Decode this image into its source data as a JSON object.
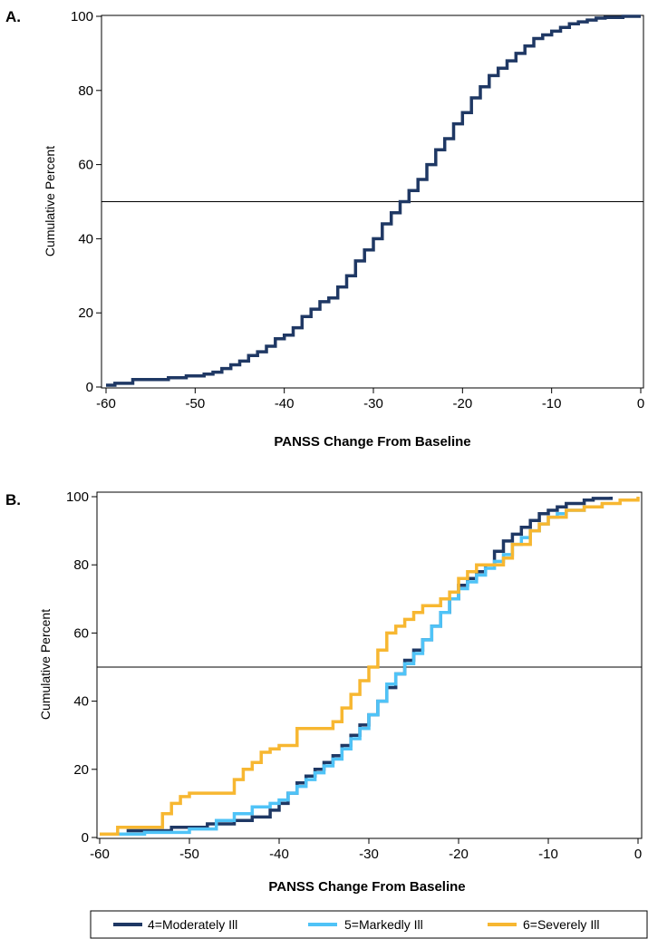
{
  "chart_data": [
    {
      "panel": "A.",
      "type": "line",
      "xlabel": "PANSS Change From Baseline",
      "ylabel": "Cumulative Percent",
      "xlim": [
        -60,
        0
      ],
      "ylim": [
        0,
        100
      ],
      "xticks": [
        -60,
        -50,
        -40,
        -30,
        -20,
        -10,
        0
      ],
      "yticks": [
        0,
        20,
        40,
        60,
        80,
        100
      ],
      "hline": 50,
      "series": [
        {
          "color": "#1f3864",
          "x": [
            -60,
            -59,
            -57,
            -53,
            -51,
            -49,
            -48,
            -47,
            -46,
            -45,
            -44,
            -43,
            -42,
            -41,
            -40,
            -39,
            -38,
            -37,
            -36,
            -35,
            -34,
            -33,
            -32,
            -31,
            -30,
            -29,
            -28,
            -27,
            -26,
            -25,
            -24,
            -23,
            -22,
            -21,
            -20,
            -19,
            -18,
            -17,
            -16,
            -15,
            -14,
            -13,
            -12,
            -11,
            -10,
            -9,
            -8,
            -7,
            -6,
            -5,
            -4,
            -2,
            0
          ],
          "y": [
            0.5,
            1,
            2,
            2.5,
            3,
            3.5,
            4,
            5,
            6,
            7,
            8.5,
            9.5,
            11,
            13,
            14,
            16,
            19,
            21,
            23,
            24,
            27,
            30,
            34,
            37,
            40,
            44,
            47,
            50,
            53,
            56,
            60,
            64,
            67,
            71,
            74,
            78,
            81,
            84,
            86,
            88,
            90,
            92,
            94,
            95,
            96,
            97,
            98,
            98.5,
            99,
            99.5,
            99.7,
            100,
            100
          ]
        }
      ]
    },
    {
      "panel": "B.",
      "type": "line",
      "xlabel": "PANSS Change From Baseline",
      "ylabel": "Cumulative Percent",
      "xlim": [
        -60,
        0
      ],
      "ylim": [
        0,
        100
      ],
      "xticks": [
        -60,
        -50,
        -40,
        -30,
        -20,
        -10,
        0
      ],
      "yticks": [
        0,
        20,
        40,
        60,
        80,
        100
      ],
      "hline": 50,
      "series": [
        {
          "name": "4=Moderately Ill",
          "color": "#1f3864",
          "x": [
            -57,
            -52,
            -48,
            -45,
            -43,
            -41,
            -40,
            -39,
            -38,
            -37,
            -36,
            -35,
            -34,
            -33,
            -32,
            -31,
            -30,
            -29,
            -28,
            -27,
            -26,
            -25,
            -24,
            -23,
            -22,
            -21,
            -20,
            -19,
            -18,
            -17,
            -16,
            -15,
            -14,
            -13,
            -12,
            -11,
            -10,
            -9,
            -8,
            -6,
            -5,
            -3
          ],
          "y": [
            2,
            3,
            4,
            5,
            6,
            8,
            10,
            13,
            16,
            18,
            20,
            22,
            24,
            27,
            30,
            33,
            36,
            40,
            44,
            48,
            52,
            55,
            58,
            62,
            66,
            70,
            74,
            76,
            78,
            80,
            84,
            87,
            89,
            91,
            93,
            95,
            96,
            97,
            98,
            99,
            99.5,
            100
          ]
        },
        {
          "name": "5=Markedly Ill",
          "color": "#4fc3f7",
          "x": [
            -59,
            -55,
            -50,
            -47,
            -45,
            -43,
            -41,
            -40,
            -39,
            -38,
            -37,
            -36,
            -35,
            -34,
            -33,
            -32,
            -31,
            -30,
            -29,
            -28,
            -27,
            -26,
            -25,
            -24,
            -23,
            -22,
            -21,
            -20,
            -19,
            -18,
            -17,
            -16,
            -15,
            -14,
            -13,
            -12,
            -11,
            -10,
            -9,
            -8,
            -6,
            -4
          ],
          "y": [
            1,
            1.5,
            2.5,
            5,
            7,
            9,
            10,
            11,
            13,
            15,
            17,
            19,
            21,
            23,
            26,
            29,
            32,
            36,
            40,
            45,
            48,
            51,
            54,
            58,
            62,
            66,
            70,
            73,
            75,
            77,
            79,
            81,
            83,
            86,
            88,
            90,
            92,
            94,
            95,
            96,
            97,
            98
          ]
        },
        {
          "name": "6=Severely Ill",
          "color": "#f7b731",
          "x": [
            -60,
            -58,
            -53,
            -52,
            -51,
            -50,
            -45,
            -44,
            -43,
            -42,
            -41,
            -40,
            -38,
            -37,
            -34,
            -33,
            -32,
            -31,
            -30,
            -29,
            -28,
            -27,
            -26,
            -25,
            -24,
            -22,
            -21,
            -20,
            -19,
            -18,
            -16,
            -15,
            -14,
            -12,
            -11,
            -10,
            -8,
            -6,
            -4,
            -2,
            0
          ],
          "y": [
            1,
            3,
            7,
            10,
            12,
            13,
            17,
            20,
            22,
            25,
            26,
            27,
            32,
            32,
            34,
            38,
            42,
            46,
            50,
            55,
            60,
            62,
            64,
            66,
            68,
            70,
            72,
            76,
            78,
            80,
            80,
            82,
            86,
            90,
            92,
            94,
            96,
            97,
            98,
            99,
            100
          ]
        }
      ]
    }
  ],
  "legend": {
    "items": [
      {
        "label": "4=Moderately Ill",
        "color": "#1f3864"
      },
      {
        "label": "5=Markedly Ill",
        "color": "#4fc3f7"
      },
      {
        "label": "6=Severely Ill",
        "color": "#f7b731"
      }
    ]
  }
}
